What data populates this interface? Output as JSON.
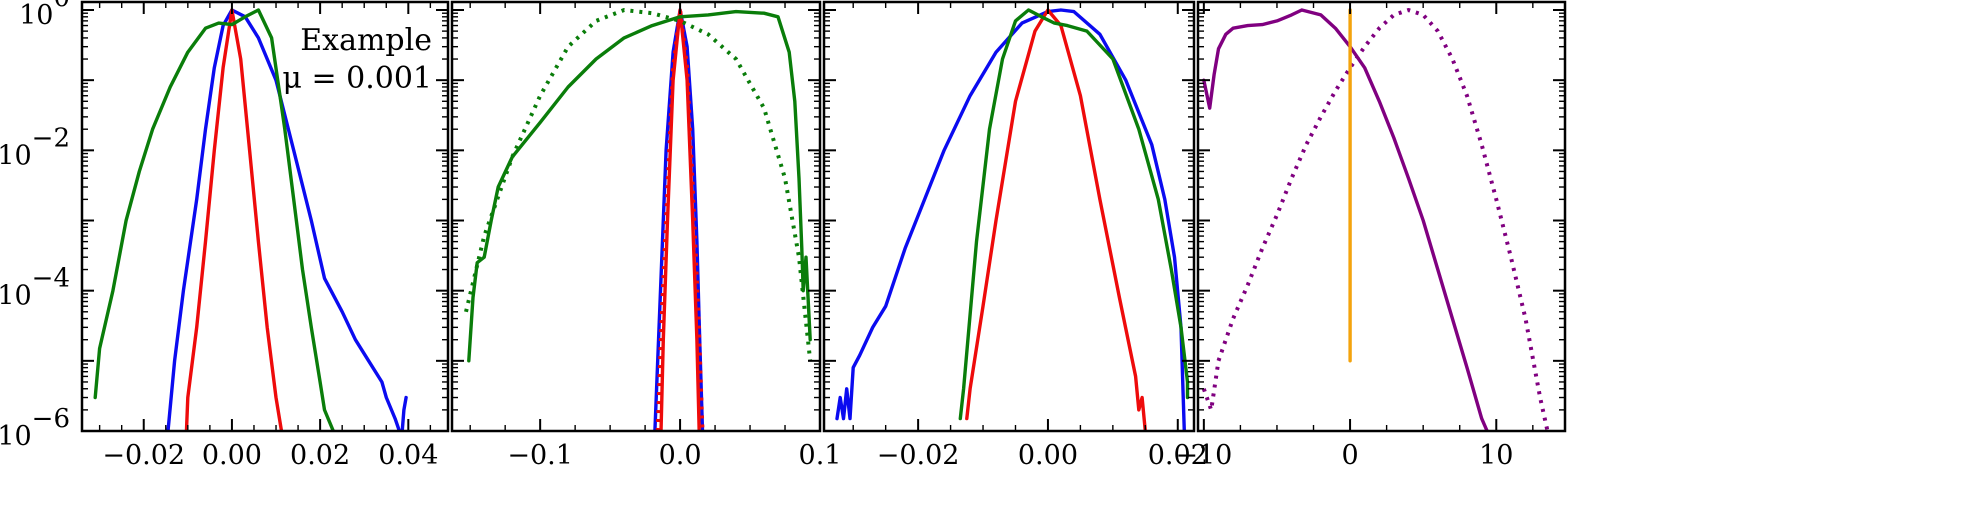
{
  "chart_data": [
    {
      "type": "line",
      "ylog": true,
      "ylim": [
        1e-06,
        1.3
      ],
      "xlim": [
        -0.034,
        0.049
      ],
      "xticks": [
        -0.02,
        0.0,
        0.02,
        0.04
      ],
      "xtick_labels": [
        "−0.02",
        "0.00",
        "0.02",
        "0.04"
      ],
      "ytick_labels": [
        {
          "value": 1,
          "base": "10",
          "exp": "0"
        },
        {
          "value": 0.01,
          "base": "10",
          "exp": "−2"
        },
        {
          "value": 0.0001,
          "base": "10",
          "exp": "−4"
        },
        {
          "value": 1e-06,
          "base": "10",
          "exp": "−6"
        }
      ],
      "annotations": [
        "Example",
        "μ = 0.001"
      ],
      "series": [
        {
          "color": "#0b0bf0",
          "style": "solid",
          "points": [
            [
              -0.0145,
              1e-06
            ],
            [
              -0.013,
              1e-05
            ],
            [
              -0.011,
              0.0001
            ],
            [
              -0.008,
              0.002
            ],
            [
              -0.006,
              0.02
            ],
            [
              -0.004,
              0.15
            ],
            [
              -0.002,
              0.6
            ],
            [
              0.0,
              1.0
            ],
            [
              0.003,
              0.8
            ],
            [
              0.006,
              0.4
            ],
            [
              0.01,
              0.1
            ],
            [
              0.014,
              0.01
            ],
            [
              0.018,
              0.001
            ],
            [
              0.021,
              0.00015
            ],
            [
              0.025,
              5e-05
            ],
            [
              0.028,
              2e-05
            ],
            [
              0.031,
              1e-05
            ],
            [
              0.034,
              5e-06
            ],
            [
              0.035,
              3e-06
            ],
            [
              0.037,
              1.5e-06
            ],
            [
              0.0385,
              8e-07
            ],
            [
              0.039,
              2e-06
            ],
            [
              0.0395,
              3e-06
            ]
          ]
        },
        {
          "color": "#ee0b0b",
          "style": "solid",
          "points": [
            [
              -0.0105,
              5e-07
            ],
            [
              -0.01,
              3e-06
            ],
            [
              -0.008,
              3e-05
            ],
            [
              -0.006,
              0.0005
            ],
            [
              -0.004,
              0.01
            ],
            [
              -0.002,
              0.15
            ],
            [
              0.0,
              1.0
            ],
            [
              0.002,
              0.2
            ],
            [
              0.004,
              0.01
            ],
            [
              0.006,
              0.0005
            ],
            [
              0.008,
              3e-05
            ],
            [
              0.01,
              3e-06
            ],
            [
              0.0115,
              8e-07
            ]
          ]
        },
        {
          "color": "#0a7d0a",
          "style": "solid",
          "points": [
            [
              -0.031,
              3e-06
            ],
            [
              -0.03,
              1.5e-05
            ],
            [
              -0.027,
              0.0001
            ],
            [
              -0.024,
              0.001
            ],
            [
              -0.021,
              0.005
            ],
            [
              -0.018,
              0.02
            ],
            [
              -0.014,
              0.08
            ],
            [
              -0.01,
              0.25
            ],
            [
              -0.006,
              0.55
            ],
            [
              -0.003,
              0.65
            ],
            [
              0.0,
              0.62
            ],
            [
              0.003,
              0.8
            ],
            [
              0.006,
              1.0
            ],
            [
              0.009,
              0.4
            ],
            [
              0.012,
              0.02
            ],
            [
              0.014,
              0.002
            ],
            [
              0.016,
              0.0002
            ],
            [
              0.018,
              3e-05
            ],
            [
              0.02,
              5e-06
            ],
            [
              0.021,
              2e-06
            ],
            [
              0.023,
              1e-06
            ]
          ]
        }
      ]
    },
    {
      "type": "line",
      "ylog": true,
      "ylim": [
        1e-06,
        1.3
      ],
      "xlim": [
        -0.163,
        0.1
      ],
      "xticks": [
        -0.1,
        0.0,
        0.1
      ],
      "xtick_labels": [
        "−0.1",
        "0.0",
        "0.1"
      ],
      "series": [
        {
          "color": "#0b0bf0",
          "style": "solid",
          "points": [
            [
              -0.018,
              1e-06
            ],
            [
              -0.014,
              0.0001
            ],
            [
              -0.01,
              0.01
            ],
            [
              -0.005,
              0.25
            ],
            [
              0.0,
              1.0
            ],
            [
              0.005,
              0.3
            ],
            [
              0.009,
              0.02
            ],
            [
              0.012,
              0.0005
            ],
            [
              0.014,
              2e-05
            ],
            [
              0.016,
              1e-06
            ]
          ]
        },
        {
          "color": "#ee0b0b",
          "style": "solid",
          "points": [
            [
              -0.014,
              5e-07
            ],
            [
              -0.012,
              2e-05
            ],
            [
              -0.009,
              0.001
            ],
            [
              -0.005,
              0.1
            ],
            [
              0.0,
              1.0
            ],
            [
              0.005,
              0.1
            ],
            [
              0.009,
              0.001
            ],
            [
              0.012,
              2e-05
            ],
            [
              0.014,
              5e-07
            ]
          ]
        },
        {
          "color": "#ee0b0b",
          "style": "dotted",
          "points": [
            [
              -0.016,
              1e-06
            ],
            [
              -0.013,
              5e-05
            ],
            [
              -0.009,
              0.003
            ],
            [
              -0.005,
              0.15
            ],
            [
              0.0,
              1.0
            ],
            [
              0.005,
              0.15
            ],
            [
              0.009,
              0.003
            ],
            [
              0.013,
              5e-05
            ],
            [
              0.016,
              1e-06
            ]
          ]
        },
        {
          "color": "#0a7d0a",
          "style": "solid",
          "points": [
            [
              -0.151,
              1e-05
            ],
            [
              -0.148,
              8e-05
            ],
            [
              -0.145,
              0.00025
            ],
            [
              -0.14,
              0.0003
            ],
            [
              -0.135,
              0.001
            ],
            [
              -0.13,
              0.003
            ],
            [
              -0.12,
              0.008
            ],
            [
              -0.1,
              0.025
            ],
            [
              -0.08,
              0.08
            ],
            [
              -0.06,
              0.2
            ],
            [
              -0.04,
              0.4
            ],
            [
              -0.02,
              0.6
            ],
            [
              0.0,
              0.8
            ],
            [
              0.02,
              0.85
            ],
            [
              0.04,
              0.95
            ],
            [
              0.06,
              0.9
            ],
            [
              0.07,
              0.8
            ],
            [
              0.078,
              0.25
            ],
            [
              0.082,
              0.05
            ],
            [
              0.085,
              0.004
            ],
            [
              0.087,
              0.0004
            ],
            [
              0.088,
              0.0001
            ],
            [
              0.09,
              0.0003
            ],
            [
              0.093,
              2e-05
            ]
          ]
        },
        {
          "color": "#0a7d0a",
          "style": "dotted",
          "points": [
            [
              -0.153,
              5e-05
            ],
            [
              -0.14,
              0.0006
            ],
            [
              -0.12,
              0.008
            ],
            [
              -0.1,
              0.06
            ],
            [
              -0.08,
              0.3
            ],
            [
              -0.06,
              0.7
            ],
            [
              -0.04,
              1.0
            ],
            [
              -0.02,
              0.9
            ],
            [
              0.0,
              0.7
            ],
            [
              0.02,
              0.45
            ],
            [
              0.04,
              0.2
            ],
            [
              0.06,
              0.04
            ],
            [
              0.075,
              0.004
            ],
            [
              0.085,
              0.0003
            ],
            [
              0.093,
              1e-05
            ]
          ]
        }
      ]
    },
    {
      "type": "line",
      "ylog": true,
      "ylim": [
        1e-06,
        1.3
      ],
      "xlim": [
        -0.0345,
        0.0225
      ],
      "xticks": [
        -0.02,
        0.0,
        0.02
      ],
      "xtick_labels": [
        "−0.02",
        "0.00",
        "0.02"
      ],
      "series": [
        {
          "color": "#0b0bf0",
          "style": "solid",
          "points": [
            [
              -0.0325,
              1.5e-06
            ],
            [
              -0.032,
              3e-06
            ],
            [
              -0.0315,
              1.5e-06
            ],
            [
              -0.031,
              4e-06
            ],
            [
              -0.0305,
              1.5e-06
            ],
            [
              -0.03,
              8e-06
            ],
            [
              -0.029,
              1.2e-05
            ],
            [
              -0.027,
              3e-05
            ],
            [
              -0.025,
              6e-05
            ],
            [
              -0.022,
              0.0004
            ],
            [
              -0.019,
              0.002
            ],
            [
              -0.016,
              0.01
            ],
            [
              -0.012,
              0.06
            ],
            [
              -0.008,
              0.25
            ],
            [
              -0.004,
              0.65
            ],
            [
              0.0,
              0.95
            ],
            [
              0.002,
              1.0
            ],
            [
              0.004,
              0.95
            ],
            [
              0.008,
              0.45
            ],
            [
              0.012,
              0.1
            ],
            [
              0.016,
              0.012
            ],
            [
              0.018,
              0.002
            ],
            [
              0.0195,
              0.0003
            ],
            [
              0.0205,
              3e-05
            ],
            [
              0.021,
              1e-06
            ]
          ]
        },
        {
          "color": "#ee0b0b",
          "style": "solid",
          "points": [
            [
              -0.0125,
              1.5e-06
            ],
            [
              -0.012,
              4e-06
            ],
            [
              -0.01,
              6e-05
            ],
            [
              -0.008,
              0.001
            ],
            [
              -0.005,
              0.05
            ],
            [
              -0.002,
              0.5
            ],
            [
              0.0,
              1.0
            ],
            [
              0.002,
              0.6
            ],
            [
              0.005,
              0.06
            ],
            [
              0.008,
              0.002
            ],
            [
              0.011,
              8e-05
            ],
            [
              0.0135,
              6e-06
            ],
            [
              0.014,
              2e-06
            ],
            [
              0.0145,
              3e-06
            ],
            [
              0.015,
              1e-06
            ]
          ]
        },
        {
          "color": "#0a7d0a",
          "style": "solid",
          "points": [
            [
              -0.0135,
              1.5e-06
            ],
            [
              -0.013,
              4e-06
            ],
            [
              -0.011,
              0.0005
            ],
            [
              -0.009,
              0.02
            ],
            [
              -0.007,
              0.2
            ],
            [
              -0.005,
              0.7
            ],
            [
              -0.003,
              1.0
            ],
            [
              -0.001,
              0.8
            ],
            [
              0.001,
              0.65
            ],
            [
              0.003,
              0.6
            ],
            [
              0.006,
              0.5
            ],
            [
              0.01,
              0.2
            ],
            [
              0.014,
              0.02
            ],
            [
              0.017,
              0.002
            ],
            [
              0.019,
              0.0002
            ],
            [
              0.0205,
              3e-05
            ],
            [
              0.0215,
              5e-06
            ],
            [
              0.0215,
              3e-06
            ]
          ]
        }
      ]
    },
    {
      "type": "line",
      "ylog": true,
      "ylim": [
        1e-06,
        1.3
      ],
      "xlim": [
        -10.4,
        14.7
      ],
      "xticks": [
        -10,
        0,
        10
      ],
      "xtick_labels": [
        "−10",
        "0",
        "10"
      ],
      "series": [
        {
          "color": "#800080",
          "style": "solid",
          "points": [
            [
              -10,
              0.1
            ],
            [
              -9.6,
              0.04
            ],
            [
              -9.3,
              0.12
            ],
            [
              -9,
              0.28
            ],
            [
              -8.5,
              0.45
            ],
            [
              -8,
              0.55
            ],
            [
              -7,
              0.6
            ],
            [
              -6,
              0.62
            ],
            [
              -5,
              0.7
            ],
            [
              -4,
              0.85
            ],
            [
              -3.3,
              1.0
            ],
            [
              -2,
              0.85
            ],
            [
              -1,
              0.55
            ],
            [
              0,
              0.3
            ],
            [
              1,
              0.15
            ],
            [
              2,
              0.05
            ],
            [
              3,
              0.015
            ],
            [
              4,
              0.004
            ],
            [
              5,
              0.001
            ],
            [
              6,
              0.0002
            ],
            [
              7,
              4e-05
            ],
            [
              8,
              8e-06
            ],
            [
              9,
              1.5e-06
            ],
            [
              10,
              5e-07
            ]
          ]
        },
        {
          "color": "#800080",
          "style": "dotted",
          "points": [
            [
              -10,
              4e-06
            ],
            [
              -9.5,
              2e-06
            ],
            [
              -9,
              1e-05
            ],
            [
              -8,
              4e-05
            ],
            [
              -7,
              0.00012
            ],
            [
              -6,
              0.0004
            ],
            [
              -5,
              0.0012
            ],
            [
              -4,
              0.004
            ],
            [
              -3,
              0.012
            ],
            [
              -2,
              0.03
            ],
            [
              -1,
              0.07
            ],
            [
              0,
              0.15
            ],
            [
              1,
              0.3
            ],
            [
              2,
              0.55
            ],
            [
              3,
              0.85
            ],
            [
              4,
              1.0
            ],
            [
              5,
              0.85
            ],
            [
              6,
              0.5
            ],
            [
              7,
              0.2
            ],
            [
              8,
              0.06
            ],
            [
              9,
              0.012
            ],
            [
              10,
              0.002
            ],
            [
              11,
              0.0003
            ],
            [
              12,
              4e-05
            ],
            [
              13,
              3e-06
            ],
            [
              13.5,
              1e-06
            ]
          ]
        },
        {
          "color": "#f4a30d",
          "style": "solid",
          "points": [
            [
              0,
              1.0
            ],
            [
              0,
              1e-05
            ]
          ]
        }
      ]
    }
  ]
}
